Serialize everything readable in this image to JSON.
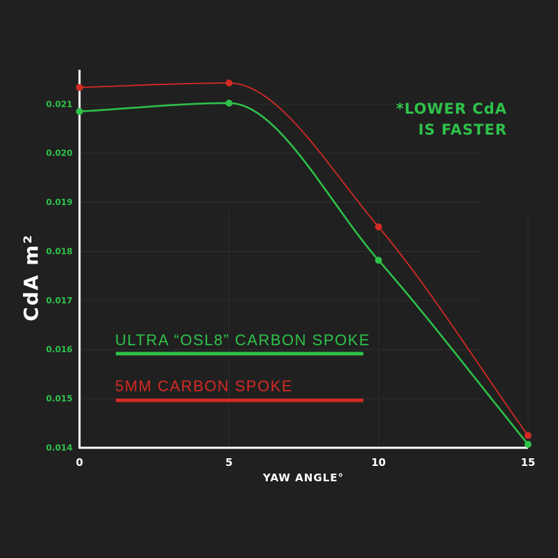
{
  "colors": {
    "background": "#202020",
    "axis": "#ffffff",
    "grid": "#3a3a3a",
    "green": "#2ec24a",
    "red": "#d42a24"
  },
  "note": {
    "line1": "*LOWER CdA",
    "line2": "IS FASTER"
  },
  "chart_data": {
    "type": "line",
    "xlabel": "YAW ANGLE°",
    "ylabel": "CdA m²",
    "xlim": [
      0,
      15
    ],
    "ylim": [
      0.014,
      0.0217
    ],
    "x_ticks": [
      0,
      5,
      10,
      15
    ],
    "y_ticks": [
      0.014,
      0.015,
      0.016,
      0.017,
      0.018,
      0.019,
      0.02,
      0.021
    ],
    "y_tick_labels": [
      "0.014",
      "0.015",
      "0.016",
      "0.017",
      "0.018",
      "0.019",
      "0.020",
      "0.021"
    ],
    "grid": true,
    "legend_position": "lower-left",
    "series": [
      {
        "name": "ULTRA “OSL8” CARBON SPOKE",
        "color": "#2ec24a",
        "x": [
          0,
          5,
          10,
          15
        ],
        "y": [
          0.02085,
          0.02102,
          0.01782,
          0.01407
        ]
      },
      {
        "name": "5MM CARBON SPOKE",
        "color": "#d42a24",
        "x": [
          0,
          5,
          10,
          15
        ],
        "y": [
          0.02134,
          0.02143,
          0.0185,
          0.01425
        ]
      }
    ]
  }
}
